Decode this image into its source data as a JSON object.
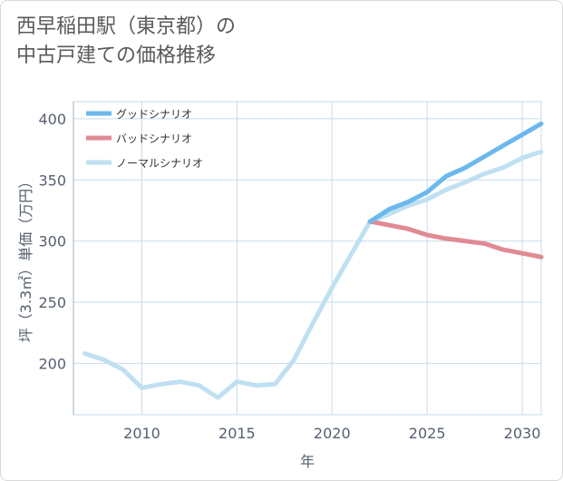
{
  "title": {
    "line1": "西早稲田駅（東京都）の",
    "line2": "中古戸建ての価格推移"
  },
  "chart_data": {
    "type": "line",
    "xlabel": "年",
    "ylabel": "坪（3.3㎡）単価（万円）",
    "xlim": [
      2006.4,
      2031
    ],
    "ylim": [
      158,
      414
    ],
    "x_ticks": [
      2010,
      2015,
      2020,
      2025,
      2030
    ],
    "y_ticks": [
      200,
      250,
      300,
      350,
      400
    ],
    "grid": true,
    "legend_position": "top-left",
    "series": [
      {
        "name": "グッドシナリオ",
        "color": "#6cb8ec",
        "x": [
          2022,
          2023,
          2024,
          2025,
          2026,
          2027,
          2028,
          2029,
          2030,
          2031
        ],
        "values": [
          316,
          326,
          332,
          340,
          353,
          360,
          369,
          378,
          387,
          396
        ]
      },
      {
        "name": "バッドシナリオ",
        "color": "#e08a94",
        "x": [
          2022,
          2023,
          2024,
          2025,
          2026,
          2027,
          2028,
          2029,
          2030,
          2031
        ],
        "values": [
          316,
          313,
          310,
          305,
          302,
          300,
          298,
          293,
          290,
          287
        ]
      },
      {
        "name": "ノーマルシナリオ",
        "color": "#bfe0f1",
        "x": [
          2007,
          2008,
          2009,
          2010,
          2011,
          2012,
          2013,
          2014,
          2015,
          2016,
          2017,
          2018,
          2019,
          2020,
          2021,
          2022,
          2023,
          2024,
          2025,
          2026,
          2027,
          2028,
          2029,
          2030,
          2031
        ],
        "values": [
          208,
          203,
          195,
          180,
          183,
          185,
          182,
          172,
          185,
          182,
          183,
          203,
          233,
          262,
          289,
          316,
          322,
          329,
          334,
          342,
          348,
          355,
          360,
          368,
          373
        ]
      }
    ]
  }
}
